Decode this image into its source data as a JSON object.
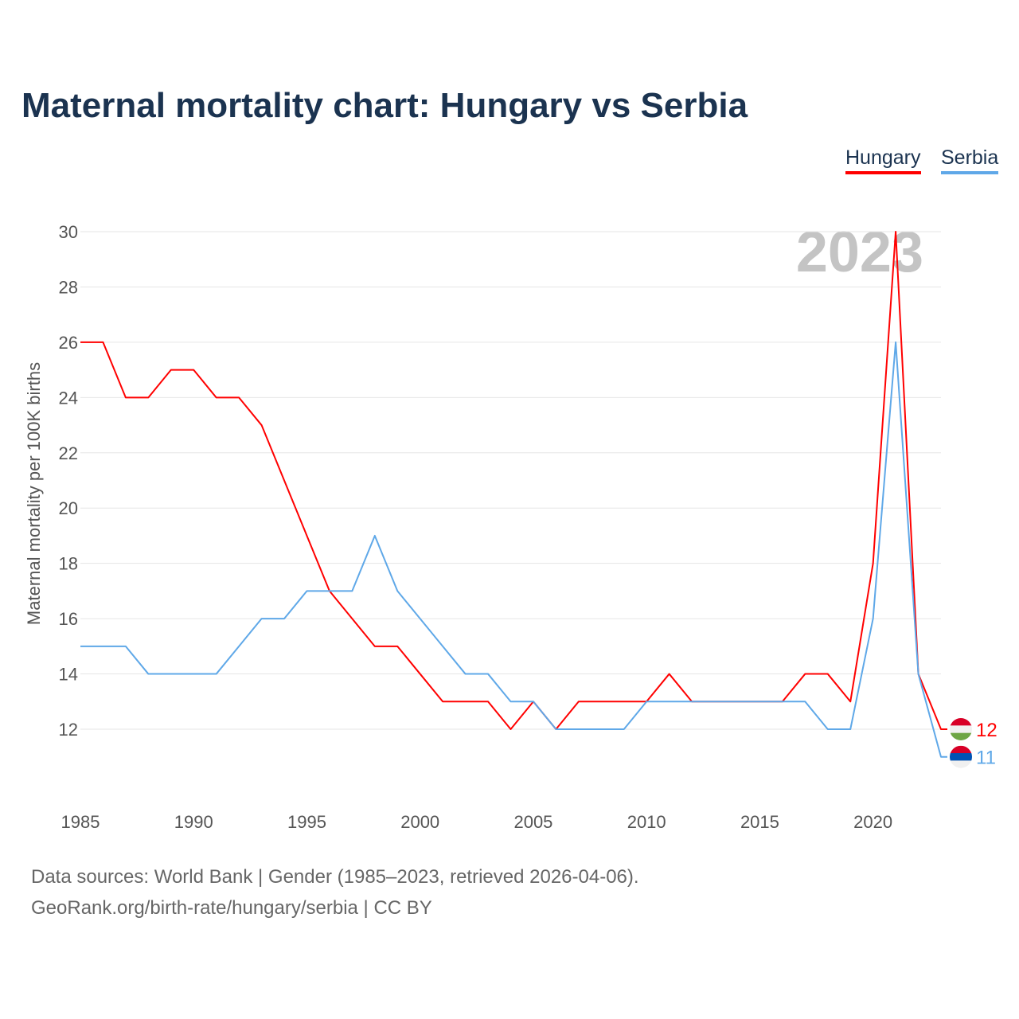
{
  "title": "Maternal mortality chart: Hungary vs Serbia",
  "footer": {
    "line1": "Data sources: World Bank | Gender (1985–2023, retrieved 2026-04-06).",
    "line2": "GeoRank.org/birth-rate/hungary/serbia | CC BY"
  },
  "chart_data": {
    "type": "line",
    "title": "Maternal mortality chart: Hungary vs Serbia",
    "ylabel": "Maternal mortality per 100K births",
    "xlabel": "",
    "year_label": "2023",
    "xlim": [
      1985,
      2023
    ],
    "ylim": [
      10,
      30
    ],
    "xticks": [
      1985,
      1990,
      1995,
      2000,
      2005,
      2010,
      2015,
      2020
    ],
    "yticks": [
      12,
      14,
      16,
      18,
      20,
      22,
      24,
      26,
      28,
      30
    ],
    "grid": true,
    "legend_position": "top-right",
    "x": [
      1985,
      1986,
      1987,
      1988,
      1989,
      1990,
      1991,
      1992,
      1993,
      1994,
      1995,
      1996,
      1997,
      1998,
      1999,
      2000,
      2001,
      2002,
      2003,
      2004,
      2005,
      2006,
      2007,
      2008,
      2009,
      2010,
      2011,
      2012,
      2013,
      2014,
      2015,
      2016,
      2017,
      2018,
      2019,
      2020,
      2021,
      2022,
      2023
    ],
    "series": [
      {
        "name": "Hungary",
        "color": "#ff0000",
        "end_label": "12",
        "values": [
          26,
          26,
          24,
          24,
          25,
          25,
          24,
          24,
          23,
          21,
          19,
          17,
          16,
          15,
          15,
          14,
          13,
          13,
          13,
          12,
          13,
          12,
          13,
          13,
          13,
          13,
          14,
          13,
          13,
          13,
          13,
          13,
          14,
          14,
          13,
          18,
          30,
          14,
          12
        ]
      },
      {
        "name": "Serbia",
        "color": "#5fa8e8",
        "end_label": "11",
        "values": [
          15,
          15,
          15,
          14,
          14,
          14,
          14,
          15,
          16,
          16,
          17,
          17,
          17,
          19,
          17,
          16,
          15,
          14,
          14,
          13,
          13,
          12,
          12,
          12,
          12,
          13,
          13,
          13,
          13,
          13,
          13,
          13,
          13,
          12,
          12,
          16,
          26,
          14,
          11
        ]
      }
    ]
  }
}
